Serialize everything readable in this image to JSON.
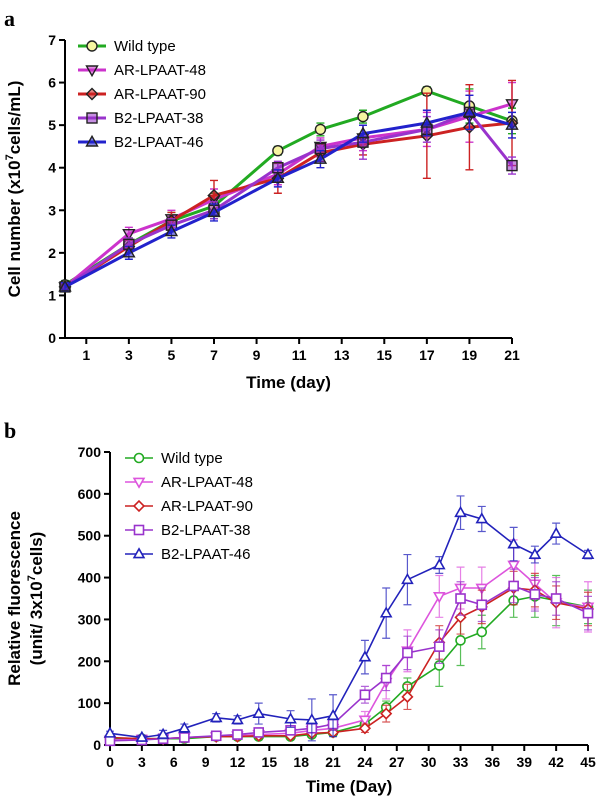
{
  "chart_data": [
    {
      "panel": "a",
      "type": "line",
      "xlabel": "Time (day)",
      "ylabel": "Cell number (x10",
      "ylabel_sup": "7",
      "ylabel_tail": "cells/mL)",
      "xlim": [
        0,
        21
      ],
      "ylim": [
        0,
        7
      ],
      "x_ticks": [
        1,
        3,
        5,
        7,
        9,
        11,
        13,
        15,
        17,
        19,
        21
      ],
      "y_ticks": [
        0,
        1,
        2,
        3,
        4,
        5,
        6,
        7
      ],
      "legend_position": "top-left",
      "x": [
        0,
        3,
        5,
        7,
        10,
        12,
        14,
        17,
        19,
        21
      ],
      "series": [
        {
          "name": "Wild type",
          "color": "#22aa22",
          "marker": "circle",
          "values": [
            1.25,
            2.2,
            2.75,
            3.1,
            4.4,
            4.9,
            5.2,
            5.8,
            5.45,
            5.1
          ],
          "errors": [
            0.1,
            0.15,
            0.2,
            0.3,
            0.1,
            0.15,
            0.15,
            0.1,
            0.4,
            0.3
          ]
        },
        {
          "name": "AR-LPAAT-48",
          "color": "#cc33cc",
          "marker": "triangle-down",
          "values": [
            1.2,
            2.45,
            2.8,
            3.25,
            3.85,
            4.5,
            4.7,
            4.9,
            5.2,
            5.5
          ],
          "errors": [
            0.1,
            0.15,
            0.2,
            0.25,
            0.25,
            0.2,
            0.3,
            0.4,
            0.6,
            0.5
          ]
        },
        {
          "name": "AR-LPAAT-90",
          "color": "#cc2222",
          "marker": "diamond",
          "values": [
            1.2,
            2.15,
            2.75,
            3.35,
            3.75,
            4.35,
            4.55,
            4.75,
            4.95,
            5.05
          ],
          "errors": [
            0.1,
            0.15,
            0.2,
            0.35,
            0.35,
            0.2,
            0.25,
            1.0,
            1.0,
            1.0
          ]
        },
        {
          "name": "B2-LPAAT-38",
          "color": "#9933cc",
          "marker": "square",
          "values": [
            1.2,
            2.2,
            2.65,
            3.0,
            4.0,
            4.45,
            4.6,
            4.9,
            5.3,
            4.05
          ],
          "errors": [
            0.1,
            0.15,
            0.15,
            0.2,
            0.15,
            0.2,
            0.4,
            0.3,
            0.4,
            0.2
          ]
        },
        {
          "name": "B2-LPAAT-46",
          "color": "#2222cc",
          "marker": "triangle-up",
          "values": [
            1.2,
            2.0,
            2.5,
            2.95,
            3.75,
            4.2,
            4.8,
            5.05,
            5.3,
            5.0
          ],
          "errors": [
            0.1,
            0.15,
            0.15,
            0.2,
            0.2,
            0.2,
            0.2,
            0.3,
            0.4,
            0.3
          ]
        }
      ]
    },
    {
      "panel": "b",
      "type": "line",
      "xlabel": "Time (Day)",
      "ylabel": "Relative fluorescence",
      "ylabel2": "(unit/ 3x10",
      "ylabel2_sup": "7",
      "ylabel2_tail": "cells)",
      "xlim": [
        0,
        45
      ],
      "ylim": [
        0,
        700
      ],
      "x_ticks": [
        0,
        3,
        6,
        9,
        12,
        15,
        18,
        21,
        24,
        27,
        30,
        33,
        36,
        39,
        42,
        45
      ],
      "y_ticks": [
        0,
        100,
        200,
        300,
        400,
        500,
        600,
        700
      ],
      "legend_position": "top-left",
      "x": [
        0,
        3,
        5,
        7,
        10,
        12,
        14,
        17,
        19,
        21,
        24,
        26,
        28,
        31,
        33,
        35,
        38,
        40,
        42,
        45
      ],
      "series": [
        {
          "name": "Wild type",
          "color": "#22aa22",
          "marker": "circle",
          "values": [
            15,
            15,
            15,
            15,
            20,
            20,
            20,
            20,
            25,
            30,
            50,
            90,
            140,
            190,
            250,
            270,
            345,
            355,
            345,
            330
          ],
          "errors": [
            5,
            5,
            5,
            5,
            5,
            5,
            5,
            5,
            5,
            5,
            10,
            15,
            20,
            50,
            60,
            40,
            40,
            50,
            60,
            40
          ]
        },
        {
          "name": "AR-LPAAT-48",
          "color": "#dd55dd",
          "marker": "triangle-down",
          "values": [
            12,
            14,
            15,
            18,
            20,
            22,
            25,
            28,
            35,
            40,
            60,
            150,
            225,
            355,
            375,
            375,
            430,
            385,
            340,
            330
          ],
          "errors": [
            5,
            5,
            5,
            5,
            5,
            5,
            5,
            5,
            10,
            10,
            20,
            40,
            50,
            50,
            50,
            50,
            60,
            60,
            60,
            60
          ]
        },
        {
          "name": "AR-LPAAT-90",
          "color": "#cc2222",
          "marker": "diamond",
          "values": [
            18,
            15,
            15,
            18,
            20,
            20,
            22,
            22,
            28,
            30,
            40,
            75,
            115,
            245,
            305,
            330,
            375,
            370,
            340,
            325
          ],
          "errors": [
            5,
            5,
            5,
            5,
            5,
            5,
            5,
            5,
            5,
            5,
            10,
            20,
            30,
            40,
            40,
            40,
            40,
            40,
            40,
            40
          ]
        },
        {
          "name": "B2-LPAAT-38",
          "color": "#9933cc",
          "marker": "square",
          "values": [
            10,
            12,
            15,
            18,
            22,
            25,
            30,
            35,
            40,
            50,
            120,
            160,
            220,
            235,
            350,
            335,
            380,
            360,
            350,
            315
          ],
          "errors": [
            5,
            5,
            5,
            5,
            5,
            5,
            10,
            10,
            10,
            15,
            20,
            30,
            40,
            40,
            40,
            40,
            40,
            40,
            40,
            40
          ]
        },
        {
          "name": "B2-LPAAT-46",
          "color": "#2222bb",
          "marker": "triangle-up",
          "values": [
            28,
            18,
            25,
            40,
            65,
            60,
            75,
            62,
            60,
            70,
            210,
            315,
            395,
            430,
            555,
            540,
            480,
            455,
            505,
            455
          ],
          "errors": [
            5,
            5,
            10,
            10,
            10,
            10,
            25,
            20,
            50,
            50,
            40,
            60,
            60,
            20,
            40,
            30,
            40,
            20,
            25,
            10
          ]
        }
      ]
    }
  ],
  "panel_labels": {
    "a": "a",
    "b": "b"
  }
}
